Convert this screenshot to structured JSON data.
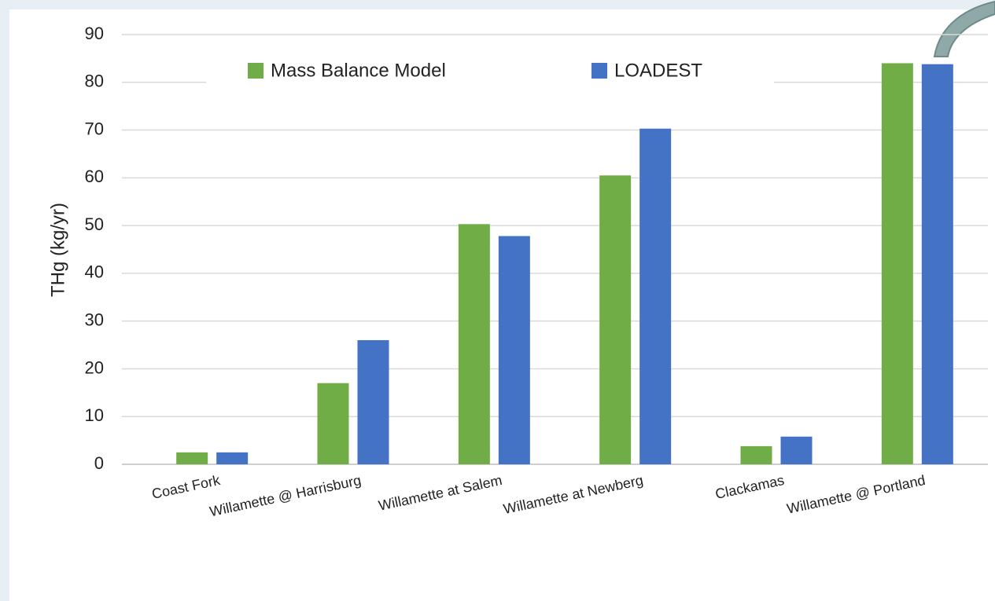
{
  "chart_data": {
    "type": "bar",
    "y_label": "THg (kg/yr)",
    "categories": [
      "Coast Fork",
      "Willamette @ Harrisburg",
      "Willamette at Salem",
      "Willamette at Newberg",
      "Clackamas",
      "Willamette @ Portland"
    ],
    "series": [
      {
        "name": "Mass Balance Model",
        "color": "#70ad47",
        "values": [
          2.5,
          17,
          50.3,
          60.5,
          3.8,
          84
        ]
      },
      {
        "name": "LOADEST",
        "color": "#4472c4",
        "values": [
          2.5,
          26,
          47.8,
          70.3,
          5.8,
          83.8
        ]
      }
    ],
    "ylim": [
      0,
      90
    ],
    "yticks": [
      0,
      10,
      20,
      30,
      40,
      50,
      60,
      70,
      80,
      90
    ],
    "grid": true,
    "legend": "top"
  }
}
